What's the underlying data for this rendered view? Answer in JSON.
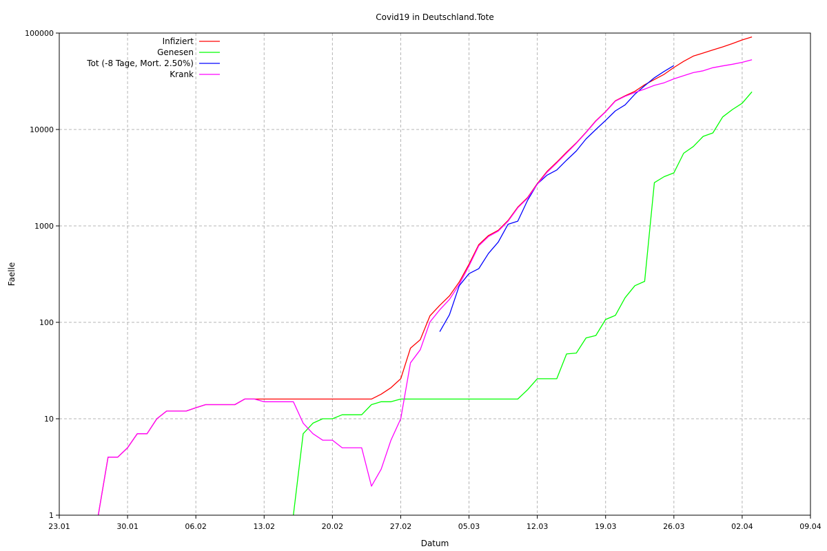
{
  "chart_data": {
    "type": "line",
    "title": "Covid19 in Deutschland.Tote",
    "xlabel": "Datum",
    "ylabel": "Faelle",
    "y_scale": "log",
    "ylim": [
      1,
      100000
    ],
    "xlim": [
      "2020-01-23",
      "2020-04-09"
    ],
    "x_ticks": [
      "23.01",
      "30.01",
      "06.02",
      "13.02",
      "20.02",
      "27.02",
      "05.03",
      "12.03",
      "19.03",
      "26.03",
      "02.04",
      "09.04"
    ],
    "y_ticks": [
      "1",
      "10",
      "100",
      "1000",
      "10000",
      "100000"
    ],
    "grid": true,
    "legend_position": "top-left",
    "series": [
      {
        "name": "Infiziert",
        "color": "#ff0000",
        "x": [
          "2020-01-27",
          "2020-01-28",
          "2020-01-29",
          "2020-01-30",
          "2020-01-31",
          "2020-02-01",
          "2020-02-02",
          "2020-02-03",
          "2020-02-04",
          "2020-02-05",
          "2020-02-06",
          "2020-02-07",
          "2020-02-08",
          "2020-02-09",
          "2020-02-10",
          "2020-02-11",
          "2020-02-12",
          "2020-02-24",
          "2020-02-25",
          "2020-02-26",
          "2020-02-27",
          "2020-02-28",
          "2020-02-29",
          "2020-03-01",
          "2020-03-02",
          "2020-03-03",
          "2020-03-04",
          "2020-03-05",
          "2020-03-06",
          "2020-03-07",
          "2020-03-08",
          "2020-03-09",
          "2020-03-10",
          "2020-03-11",
          "2020-03-12",
          "2020-03-13",
          "2020-03-14",
          "2020-03-15",
          "2020-03-16",
          "2020-03-17",
          "2020-03-18",
          "2020-03-19",
          "2020-03-20",
          "2020-03-21",
          "2020-03-22",
          "2020-03-23",
          "2020-03-24",
          "2020-03-25",
          "2020-03-26",
          "2020-03-27",
          "2020-03-28",
          "2020-03-29",
          "2020-03-30",
          "2020-03-31",
          "2020-04-01",
          "2020-04-02",
          "2020-04-03"
        ],
        "values": [
          1,
          4,
          4,
          5,
          7,
          7,
          10,
          12,
          12,
          12,
          13,
          14,
          14,
          14,
          14,
          16,
          16,
          16,
          18,
          21,
          26,
          54,
          66,
          117,
          150,
          188,
          262,
          400,
          639,
          795,
          902,
          1139,
          1567,
          1966,
          2745,
          3675,
          4585,
          5813,
          7272,
          9360,
          12327,
          15320,
          19848,
          22364,
          24873,
          29056,
          32986,
          37323,
          43938,
          50871,
          57695,
          62095,
          66885,
          71808,
          77872,
          84794,
          91159
        ]
      },
      {
        "name": "Genesen",
        "color": "#00ff00",
        "x": [
          "2020-02-16",
          "2020-02-17",
          "2020-02-18",
          "2020-02-19",
          "2020-02-20",
          "2020-02-21",
          "2020-02-22",
          "2020-02-23",
          "2020-02-24",
          "2020-02-25",
          "2020-02-26",
          "2020-02-27",
          "2020-03-10",
          "2020-03-11",
          "2020-03-12",
          "2020-03-13",
          "2020-03-14",
          "2020-03-15",
          "2020-03-16",
          "2020-03-17",
          "2020-03-18",
          "2020-03-19",
          "2020-03-20",
          "2020-03-21",
          "2020-03-22",
          "2020-03-23",
          "2020-03-24",
          "2020-03-25",
          "2020-03-26",
          "2020-03-27",
          "2020-03-28",
          "2020-03-29",
          "2020-03-30",
          "2020-03-31",
          "2020-04-01",
          "2020-04-02",
          "2020-04-03"
        ],
        "values": [
          1,
          7,
          9,
          10,
          10,
          11,
          11,
          11,
          14,
          15,
          15,
          16,
          16,
          20,
          26,
          26,
          26,
          47,
          48,
          69,
          73,
          107,
          118,
          180,
          240,
          266,
          2809,
          3243,
          3547,
          5673,
          6658,
          8481,
          9211,
          13500,
          16100,
          18700,
          24575
        ]
      },
      {
        "name": "Tot (-8 Tage, Mort. 2.50%)",
        "color": "#0000ff",
        "x": [
          "2020-03-02",
          "2020-03-03",
          "2020-03-04",
          "2020-03-05",
          "2020-03-06",
          "2020-03-07",
          "2020-03-08",
          "2020-03-09",
          "2020-03-10",
          "2020-03-11",
          "2020-03-12",
          "2020-03-13",
          "2020-03-14",
          "2020-03-15",
          "2020-03-16",
          "2020-03-17",
          "2020-03-18",
          "2020-03-19",
          "2020-03-20",
          "2020-03-21",
          "2020-03-22",
          "2020-03-23",
          "2020-03-24",
          "2020-03-25",
          "2020-03-26"
        ],
        "values": [
          80,
          120,
          240,
          320,
          360,
          520,
          680,
          1040,
          1120,
          1840,
          2720,
          3360,
          3800,
          4800,
          6000,
          8000,
          10000,
          12400,
          15600,
          18000,
          23200,
          28400,
          34400,
          40000,
          46000
        ]
      },
      {
        "name": "Krank",
        "color": "#ff00ff",
        "x": [
          "2020-01-27",
          "2020-01-28",
          "2020-01-29",
          "2020-01-30",
          "2020-01-31",
          "2020-02-01",
          "2020-02-02",
          "2020-02-03",
          "2020-02-04",
          "2020-02-05",
          "2020-02-06",
          "2020-02-07",
          "2020-02-08",
          "2020-02-09",
          "2020-02-10",
          "2020-02-11",
          "2020-02-12",
          "2020-02-13",
          "2020-02-14",
          "2020-02-15",
          "2020-02-16",
          "2020-02-17",
          "2020-02-18",
          "2020-02-19",
          "2020-02-20",
          "2020-02-21",
          "2020-02-22",
          "2020-02-23",
          "2020-02-24",
          "2020-02-25",
          "2020-02-26",
          "2020-02-27",
          "2020-02-28",
          "2020-02-29",
          "2020-03-01",
          "2020-03-02",
          "2020-03-03",
          "2020-03-04",
          "2020-03-05",
          "2020-03-06",
          "2020-03-07",
          "2020-03-08",
          "2020-03-09",
          "2020-03-10",
          "2020-03-11",
          "2020-03-12",
          "2020-03-13",
          "2020-03-14",
          "2020-03-15",
          "2020-03-16",
          "2020-03-17",
          "2020-03-18",
          "2020-03-19",
          "2020-03-20",
          "2020-03-21",
          "2020-03-22",
          "2020-03-23",
          "2020-03-24",
          "2020-03-25",
          "2020-03-26",
          "2020-03-27",
          "2020-03-28",
          "2020-03-29",
          "2020-03-30",
          "2020-03-31",
          "2020-04-01",
          "2020-04-02",
          "2020-04-03"
        ],
        "values": [
          1,
          4,
          4,
          5,
          7,
          7,
          10,
          12,
          12,
          12,
          13,
          14,
          14,
          14,
          14,
          16,
          16,
          15,
          15,
          15,
          15,
          9,
          7,
          6,
          6,
          5,
          5,
          5,
          2,
          3,
          6,
          10,
          38,
          52,
          101,
          135,
          173,
          248,
          384,
          622,
          778,
          884,
          1119,
          1540,
          1937,
          2700,
          3600,
          4500,
          5700,
          7200,
          9300,
          12200,
          15200,
          19700,
          22100,
          24200,
          26200,
          28700,
          30500,
          33500,
          36100,
          38900,
          40600,
          43700,
          45600,
          47500,
          49700,
          52800
        ]
      }
    ]
  }
}
